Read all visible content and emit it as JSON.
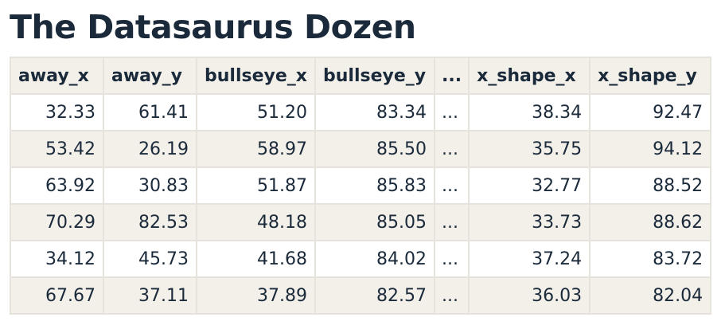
{
  "title": "The Datasaurus Dozen",
  "table": {
    "columns": [
      "away_x",
      "away_y",
      "bullseye_x",
      "bullseye_y",
      "...",
      "x_shape_x",
      "x_shape_y"
    ],
    "rows": [
      [
        "32.33",
        "61.41",
        "51.20",
        "83.34",
        "...",
        "38.34",
        "92.47"
      ],
      [
        "53.42",
        "26.19",
        "58.97",
        "85.50",
        "...",
        "35.75",
        "94.12"
      ],
      [
        "63.92",
        "30.83",
        "51.87",
        "85.83",
        "...",
        "32.77",
        "88.52"
      ],
      [
        "70.29",
        "82.53",
        "48.18",
        "85.05",
        "...",
        "33.73",
        "88.62"
      ],
      [
        "34.12",
        "45.73",
        "41.68",
        "84.02",
        "...",
        "37.24",
        "83.72"
      ],
      [
        "67.67",
        "37.11",
        "37.89",
        "82.57",
        "...",
        "36.03",
        "82.04"
      ]
    ]
  }
}
